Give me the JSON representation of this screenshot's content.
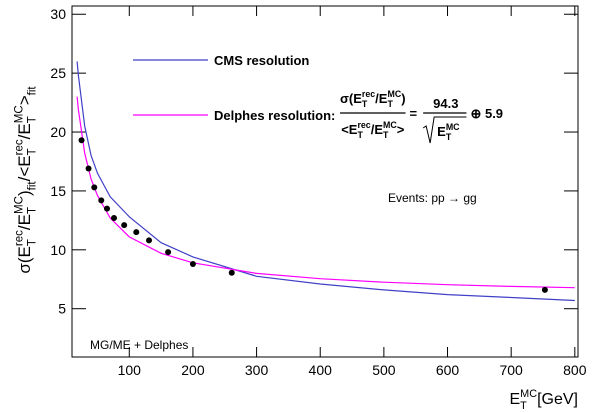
{
  "chart_data": {
    "type": "line",
    "xlabel": [
      {
        "t": "E"
      },
      {
        "sup": "MC",
        "sub": "T"
      },
      {
        "t": " [GeV]"
      }
    ],
    "ylabel": [
      {
        "t": "σ(E"
      },
      {
        "sup": "rec",
        "sub": "T"
      },
      {
        "t": "/E"
      },
      {
        "sup": "MC",
        "sub": "T"
      },
      {
        "t": ")"
      },
      {
        "sub": "fit"
      },
      {
        "t": "/<E"
      },
      {
        "sup": "rec",
        "sub": "T"
      },
      {
        "t": "/E"
      },
      {
        "sup": "MC",
        "sub": "T"
      },
      {
        "t": ">"
      },
      {
        "sub": "fit"
      }
    ],
    "xlim": [
      10,
      805
    ],
    "ylim": [
      0.9,
      30.7
    ],
    "xticks": [
      100,
      200,
      300,
      400,
      500,
      600,
      700,
      800
    ],
    "yticks": [
      5,
      10,
      15,
      20,
      25,
      30
    ],
    "x": [
      18,
      20,
      30,
      40,
      50,
      70,
      100,
      150,
      200,
      300,
      400,
      500,
      600,
      700,
      800
    ],
    "series": [
      {
        "name": "CMS resolution",
        "color": "#4040c8",
        "values": [
          26,
          24.8,
          20.5,
          18,
          16.5,
          14.5,
          12.8,
          10.6,
          9.4,
          7.75,
          7.1,
          6.6,
          6.2,
          5.95,
          5.7
        ]
      },
      {
        "name": "Delphes resolution:",
        "color": "#ff00ff",
        "values": [
          23.0,
          21.9,
          18.2,
          16.0,
          14.6,
          12.7,
          11.1,
          9.7,
          8.9,
          8.0,
          7.55,
          7.25,
          7.04,
          6.89,
          6.78
        ]
      }
    ],
    "points": {
      "color": "#000000",
      "x": [
        25,
        36,
        45,
        56,
        65,
        76,
        92,
        111,
        131,
        161,
        200,
        261,
        753
      ],
      "y": [
        19.3,
        16.9,
        15.3,
        14.2,
        13.5,
        12.7,
        12.1,
        11.5,
        10.8,
        9.8,
        8.8,
        8.05,
        6.6
      ]
    },
    "formula": {
      "num": [
        {
          "t": "σ(E"
        },
        {
          "sup": "rec",
          "sub": "T"
        },
        {
          "t": "/E"
        },
        {
          "sup": "MC",
          "sub": "T"
        },
        {
          "t": ")"
        }
      ],
      "den": [
        {
          "t": "<E"
        },
        {
          "sup": "rec",
          "sub": "T"
        },
        {
          "t": "/E"
        },
        {
          "sup": "MC",
          "sub": "T"
        },
        {
          "t": ">"
        }
      ],
      "eq": "=",
      "coef": "94.3",
      "root": [
        {
          "t": "E"
        },
        {
          "sup": "MC",
          "sub": "T"
        }
      ],
      "tail": "⊕ 5.9"
    },
    "annotations": [
      "Events: pp → gg",
      "MG/ME + Delphes"
    ]
  }
}
